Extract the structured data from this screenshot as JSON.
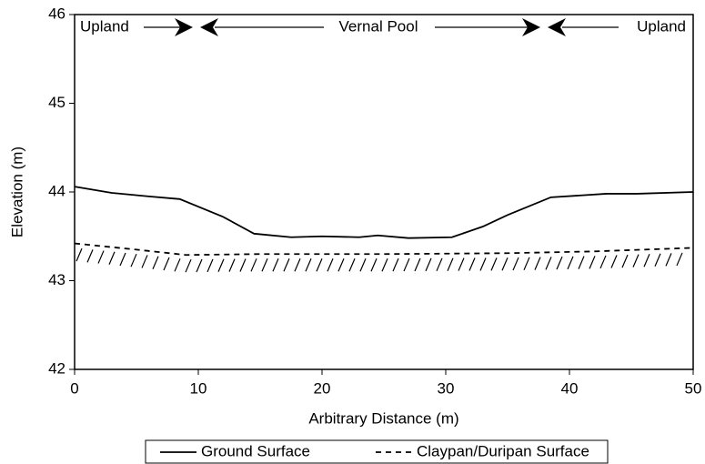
{
  "chart_data": {
    "type": "line",
    "annotations": [
      "Upland",
      "Vernal Pool",
      "Upland"
    ],
    "x_label": "Arbitrary Distance (m)",
    "y_label": "Elevation (m)",
    "series": [
      {
        "name": "Ground Surface",
        "color": "#000000",
        "style": "solid",
        "x": [
          0,
          3,
          6,
          8.5,
          12,
          14.5,
          17.5,
          20,
          23,
          24.5,
          27,
          30.5,
          33,
          35,
          38.5,
          43,
          45.5,
          50
        ],
        "values": [
          44.06,
          43.99,
          43.95,
          43.92,
          43.72,
          43.53,
          43.49,
          43.5,
          43.49,
          43.51,
          43.48,
          43.49,
          43.61,
          43.74,
          43.94,
          43.98,
          43.98,
          44.0
        ]
      },
      {
        "name": "Claypan/Duripan Surface",
        "color": "#000000",
        "style": "dashed",
        "x": [
          0,
          5,
          9,
          15,
          25,
          35,
          42,
          50
        ],
        "values": [
          43.42,
          43.35,
          43.29,
          43.3,
          43.3,
          43.31,
          43.33,
          43.37
        ]
      }
    ],
    "xlim": [
      0,
      50
    ],
    "xticks": [
      0,
      10,
      20,
      30,
      40,
      50
    ],
    "ylim": [
      42,
      46
    ],
    "yticks": [
      42,
      43,
      44,
      45,
      46
    ],
    "grid": false,
    "legend": "bottom"
  }
}
